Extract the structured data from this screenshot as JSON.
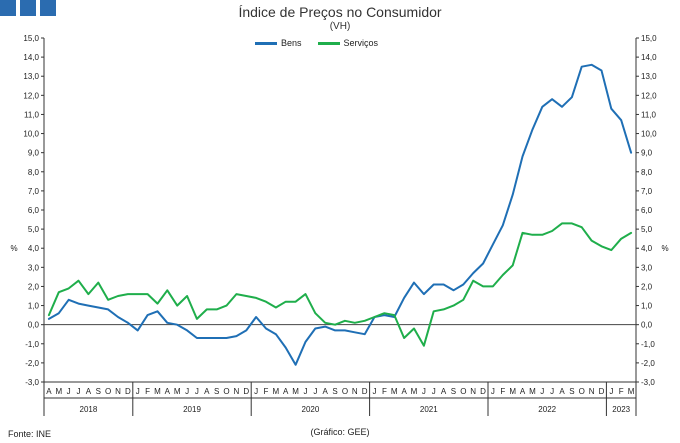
{
  "header": {
    "title": "Índice de Preços no Consumidor",
    "subtitle": "(VH)"
  },
  "footer": {
    "source": "Fonte: INE",
    "credit": "(Gráfico: GEE)"
  },
  "colors": {
    "brand": "#2b6cb0",
    "bens": "#1f6fb5",
    "servicos": "#1fae4b",
    "axis": "#333333",
    "zero_line": "#444444"
  },
  "chart_data": {
    "type": "line",
    "title": "Índice de Preços no Consumidor",
    "subtitle": "(VH)",
    "ylabel_left": "%",
    "ylabel_right": "%",
    "ylim": [
      -3,
      15
    ],
    "yticks": [
      -3,
      -2,
      -1,
      0,
      1,
      2,
      3,
      4,
      5,
      6,
      7,
      8,
      9,
      10,
      11,
      12,
      13,
      14,
      15
    ],
    "ytick_labels": [
      "-3,0",
      "-2,0",
      "-1,0",
      "0,0",
      "1,0",
      "2,0",
      "3,0",
      "4,0",
      "5,0",
      "6,0",
      "7,0",
      "8,0",
      "9,0",
      "10,0",
      "11,0",
      "12,0",
      "13,0",
      "14,0",
      "15,0"
    ],
    "grid": false,
    "legend_position": "top-center",
    "month_labels": [
      "A",
      "M",
      "J",
      "J",
      "A",
      "S",
      "O",
      "N",
      "D",
      "J",
      "F",
      "M",
      "A",
      "M",
      "J",
      "J",
      "A",
      "S",
      "O",
      "N",
      "D",
      "J",
      "F",
      "M",
      "A",
      "M",
      "J",
      "J",
      "A",
      "S",
      "O",
      "N",
      "D",
      "J",
      "F",
      "M",
      "A",
      "M",
      "J",
      "J",
      "A",
      "S",
      "O",
      "N",
      "D",
      "J",
      "F",
      "M",
      "A",
      "M",
      "J",
      "J",
      "A",
      "S",
      "O",
      "N",
      "D",
      "J",
      "F",
      "M"
    ],
    "year_groups": [
      {
        "label": "2018",
        "start": 0,
        "end": 8
      },
      {
        "label": "2019",
        "start": 9,
        "end": 20
      },
      {
        "label": "2020",
        "start": 21,
        "end": 32
      },
      {
        "label": "2021",
        "start": 33,
        "end": 44
      },
      {
        "label": "2022",
        "start": 45,
        "end": 56
      },
      {
        "label": "2023",
        "start": 57,
        "end": 59
      }
    ],
    "series": [
      {
        "name": "Bens",
        "color": "#1f6fb5",
        "values": [
          0.3,
          0.6,
          1.3,
          1.1,
          1.0,
          0.9,
          0.8,
          0.4,
          0.1,
          -0.3,
          0.5,
          0.7,
          0.1,
          0.0,
          -0.3,
          -0.7,
          -0.7,
          -0.7,
          -0.7,
          -0.6,
          -0.3,
          0.4,
          -0.2,
          -0.5,
          -1.2,
          -2.1,
          -0.9,
          -0.2,
          -0.1,
          -0.3,
          -0.3,
          -0.4,
          -0.5,
          0.4,
          0.5,
          0.4,
          1.4,
          2.2,
          1.6,
          2.1,
          2.1,
          1.8,
          2.1,
          2.7,
          3.2,
          4.2,
          5.2,
          6.8,
          8.8,
          10.2,
          11.4,
          11.8,
          11.4,
          11.9,
          13.5,
          13.6,
          13.3,
          11.3,
          10.7,
          9.0
        ]
      },
      {
        "name": "Serviços",
        "color": "#1fae4b",
        "values": [
          0.5,
          1.7,
          1.9,
          2.3,
          1.6,
          2.2,
          1.3,
          1.5,
          1.6,
          1.6,
          1.6,
          1.1,
          1.8,
          1.0,
          1.5,
          0.3,
          0.8,
          0.8,
          1.0,
          1.6,
          1.5,
          1.4,
          1.2,
          0.9,
          1.2,
          1.2,
          1.6,
          0.6,
          0.1,
          0.0,
          0.2,
          0.1,
          0.2,
          0.4,
          0.6,
          0.5,
          -0.7,
          -0.2,
          -1.1,
          0.7,
          0.8,
          1.0,
          1.3,
          2.3,
          2.0,
          2.0,
          2.6,
          3.1,
          4.8,
          4.7,
          4.7,
          4.9,
          5.3,
          5.3,
          5.1,
          4.4,
          4.1,
          3.9,
          4.5,
          4.8
        ]
      }
    ]
  }
}
